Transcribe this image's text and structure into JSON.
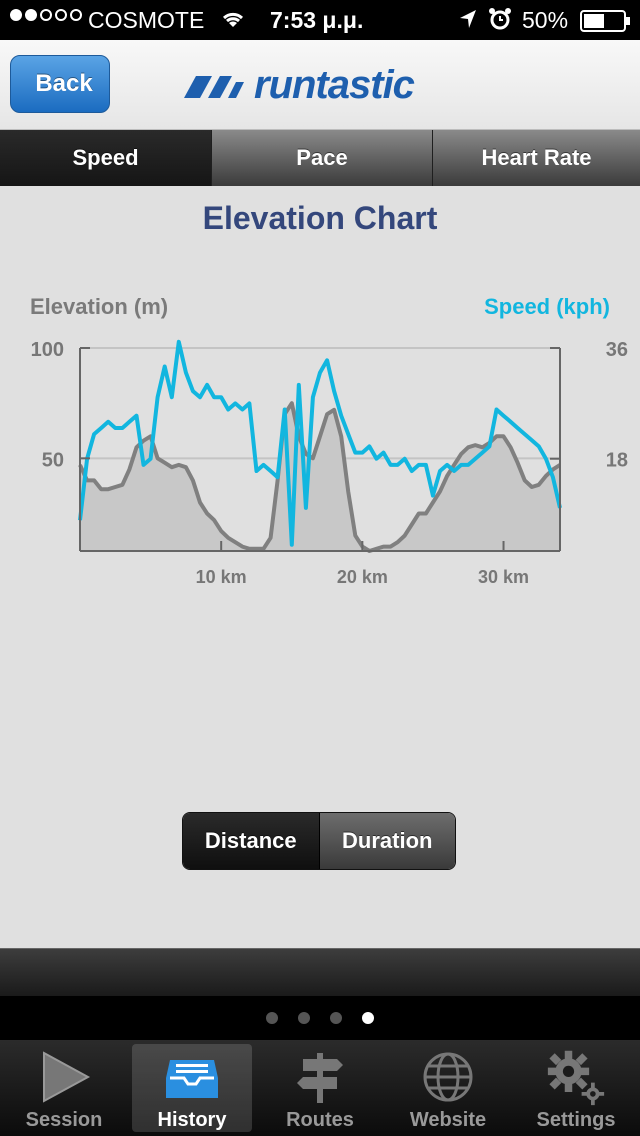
{
  "status": {
    "carrier": "COSMOTE",
    "time": "7:53 μ.μ.",
    "battery": "50%",
    "signal_bars": 2,
    "signal_total": 5
  },
  "nav": {
    "back": "Back",
    "logo": "runtastic"
  },
  "tabs": [
    "Speed",
    "Pace",
    "Heart Rate"
  ],
  "chart": {
    "title": "Elevation Chart",
    "left_axis_label": "Elevation (m)",
    "right_axis_label": "Speed (kph)",
    "left_ticks": [
      "100",
      "50"
    ],
    "right_ticks": [
      "36",
      "18"
    ],
    "x_ticks": [
      "10 km",
      "20 km",
      "30 km"
    ]
  },
  "chart_data": {
    "type": "line",
    "title": "Elevation Chart",
    "xlabel": "",
    "ylabel": "Elevation (m)",
    "y2label": "Speed (kph)",
    "xlim": [
      0,
      34
    ],
    "ylim": [
      8,
      100
    ],
    "y2lim": [
      3,
      36
    ],
    "x_ticks": [
      10,
      20,
      30
    ],
    "y_ticks": [
      50,
      100
    ],
    "y2_ticks": [
      18,
      36
    ],
    "grid": true,
    "series": [
      {
        "name": "Elevation (m)",
        "axis": "left",
        "color": "#808080",
        "x": [
          0,
          0.5,
          1,
          1.5,
          2,
          2.5,
          3,
          3.5,
          4,
          4.5,
          5,
          5.5,
          6,
          6.5,
          7,
          7.5,
          8,
          8.5,
          9,
          9.5,
          10,
          10.5,
          11,
          11.5,
          12,
          12.5,
          13,
          13.5,
          14,
          14.5,
          15,
          15.5,
          16,
          16.5,
          17,
          17.5,
          18,
          18.5,
          19,
          19.5,
          20,
          20.5,
          21,
          21.5,
          22,
          22.5,
          23,
          23.5,
          24,
          24.5,
          25,
          25.5,
          26,
          26.5,
          27,
          27.5,
          28,
          28.5,
          29,
          29.5,
          30,
          30.5,
          31,
          31.5,
          32,
          32.5,
          33,
          33.5,
          34
        ],
        "values": [
          47,
          40,
          40,
          36,
          36,
          37,
          38,
          45,
          55,
          58,
          60,
          50,
          48,
          46,
          47,
          46,
          40,
          30,
          25,
          22,
          17,
          14,
          12,
          10,
          9,
          9,
          9,
          14,
          40,
          70,
          75,
          60,
          52,
          50,
          60,
          70,
          72,
          60,
          35,
          15,
          10,
          8,
          9,
          10,
          10,
          12,
          15,
          20,
          25,
          25,
          30,
          35,
          42,
          47,
          52,
          55,
          56,
          55,
          57,
          60,
          60,
          55,
          48,
          40,
          37,
          38,
          42,
          45,
          47
        ]
      },
      {
        "name": "Speed (kph)",
        "axis": "right",
        "color": "#12b6df",
        "x": [
          0,
          0.5,
          1,
          1.5,
          2,
          2.5,
          3,
          3.5,
          4,
          4.5,
          5,
          5.5,
          6,
          6.5,
          7,
          7.5,
          8,
          8.5,
          9,
          9.5,
          10,
          10.5,
          11,
          11.5,
          12,
          12.5,
          13,
          13.5,
          14,
          14.5,
          15,
          15.5,
          16,
          16.5,
          17,
          17.5,
          18,
          18.5,
          19,
          19.5,
          20,
          20.5,
          21,
          21.5,
          22,
          22.5,
          23,
          23.5,
          24,
          24.5,
          25,
          25.5,
          26,
          26.5,
          27,
          27.5,
          28,
          28.5,
          29,
          29.5,
          30,
          30.5,
          31,
          31.5,
          32,
          32.5,
          33,
          33.5,
          34
        ],
        "values": [
          8,
          18,
          22,
          23,
          24,
          23,
          23,
          24,
          25,
          17,
          18,
          28,
          33,
          28,
          37,
          32,
          29,
          28,
          30,
          28,
          28,
          26,
          27,
          26,
          27,
          16,
          17,
          16,
          15,
          26,
          4,
          30,
          10,
          28,
          32,
          34,
          29,
          25,
          22,
          19,
          19,
          20,
          18,
          19,
          17,
          17,
          18,
          16,
          17,
          17,
          12,
          16,
          17,
          16,
          17,
          17,
          18,
          19,
          20,
          26,
          25,
          24,
          23,
          22,
          21,
          20,
          18,
          15,
          10
        ]
      }
    ]
  },
  "segment": [
    "Distance",
    "Duration"
  ],
  "pager": {
    "count": 4,
    "active": 3
  },
  "tabbar": [
    "Session",
    "History",
    "Routes",
    "Website",
    "Settings"
  ]
}
